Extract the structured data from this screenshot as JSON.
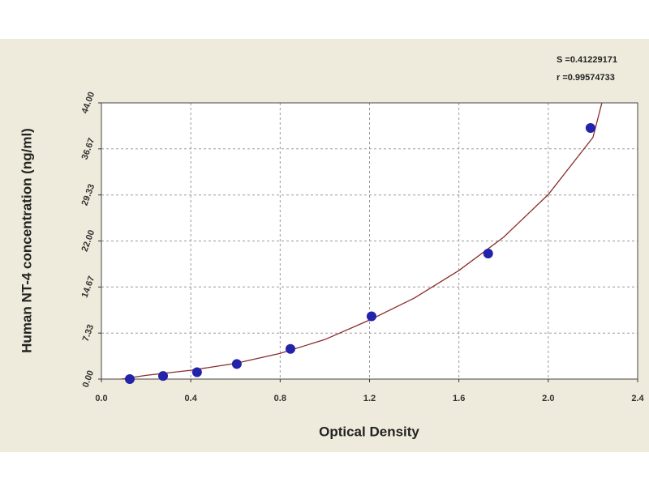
{
  "chart_data": {
    "type": "scatter",
    "annotations": [
      "S =0.41229171",
      "r =0.99574733"
    ],
    "xlabel": "Optical Density",
    "ylabel": "Human NT-4 concentration (ng/ml)",
    "xlim": [
      0,
      2.4
    ],
    "xticks": [
      {
        "value": 0,
        "label": "0.0"
      },
      0.4,
      0.8,
      1.2,
      1.6,
      {
        "value": 2,
        "label": "2.0"
      },
      2.4
    ],
    "ylim": [
      0,
      44
    ],
    "yticks": [
      {
        "value": 0,
        "label": "0.00"
      },
      7.33,
      14.67,
      {
        "value": 22,
        "label": "22.00"
      },
      29.33,
      36.67,
      {
        "value": 44,
        "label": "44.00"
      }
    ],
    "grid": true,
    "series": [
      {
        "style": "points",
        "color": "#2222aa",
        "x": [
          0.127,
          0.276,
          0.428,
          0.606,
          0.846,
          1.209,
          1.731,
          2.189
        ],
        "values": [
          0,
          0.5,
          1.1,
          2.4,
          4.8,
          10,
          20,
          40
        ]
      },
      {
        "style": "line",
        "color": "#8b2a2a",
        "x": [
          0.09,
          0.2,
          0.4,
          0.6,
          0.8,
          1.0,
          1.2,
          1.4,
          1.6,
          1.8,
          2.0,
          2.2,
          2.24
        ],
        "values": [
          0,
          0.6,
          1.4,
          2.5,
          4.1,
          6.3,
          9.4,
          12.9,
          17.3,
          22.6,
          29.4,
          38.5,
          44
        ]
      }
    ]
  }
}
